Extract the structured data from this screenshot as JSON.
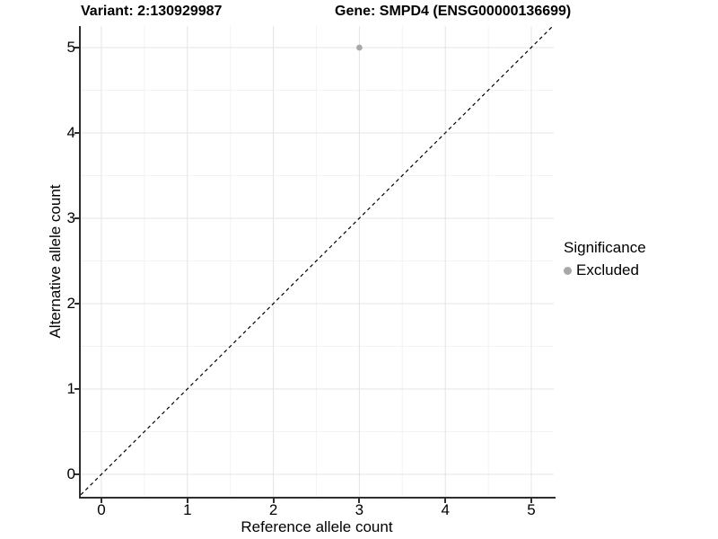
{
  "header": {
    "variant_title": "Variant: 2:130929987",
    "gene_title": "Gene: SMPD4 (ENSG00000136699)"
  },
  "axes": {
    "x": {
      "label": "Reference allele count",
      "ticks": [
        "0",
        "1",
        "2",
        "3",
        "4",
        "5"
      ],
      "tick_values": [
        0,
        1,
        2,
        3,
        4,
        5
      ],
      "minor_values": [
        0.5,
        1.5,
        2.5,
        3.5,
        4.5
      ]
    },
    "y": {
      "label": "Alternative allele count",
      "ticks": [
        "0",
        "1",
        "2",
        "3",
        "4",
        "5"
      ],
      "tick_values": [
        0,
        1,
        2,
        3,
        4,
        5
      ],
      "minor_values": [
        0.5,
        1.5,
        2.5,
        3.5,
        4.5
      ]
    }
  },
  "legend": {
    "title": "Significance",
    "items": [
      {
        "label": "Excluded",
        "color": "#a8a8a8"
      }
    ]
  },
  "chart_data": {
    "type": "scatter",
    "title": "Variant: 2:130929987   Gene: SMPD4 (ENSG00000136699)",
    "xlabel": "Reference allele count",
    "ylabel": "Alternative allele count",
    "xlim": [
      -0.25,
      5.25
    ],
    "ylim": [
      -0.25,
      5.25
    ],
    "grid": "major and minor gridlines, light gray on white",
    "legend_position": "right",
    "series": [
      {
        "name": "Excluded",
        "color": "#a8a8a8",
        "points": [
          {
            "x": 3,
            "y": 5
          }
        ]
      }
    ],
    "reference_line": {
      "type": "identity y=x",
      "style": "dashed",
      "color": "#000000"
    }
  },
  "colors": {
    "background": "#ffffff",
    "text": "#000000",
    "axis": "#2f2f2f",
    "grid_major": "#e4e4e4",
    "grid_minor": "#f3f3f3",
    "point": "#a8a8a8",
    "reference_line": "#000000"
  }
}
